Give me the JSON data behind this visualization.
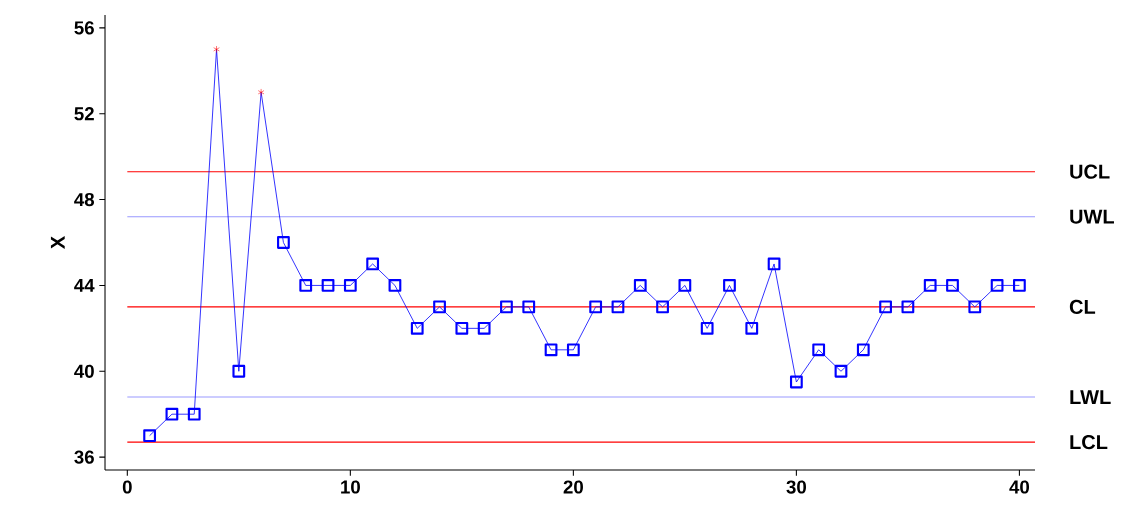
{
  "chart_data": {
    "type": "line",
    "ylabel": "X",
    "x": [
      1,
      2,
      3,
      4,
      5,
      6,
      7,
      8,
      9,
      10,
      11,
      12,
      13,
      14,
      15,
      16,
      17,
      18,
      19,
      20,
      21,
      22,
      23,
      24,
      25,
      26,
      27,
      28,
      29,
      30,
      31,
      32,
      33,
      34,
      35,
      36,
      37,
      38,
      39,
      40
    ],
    "series": [
      {
        "color": "#0000ff",
        "marker": "none",
        "values": [
          37,
          38,
          38,
          55,
          40,
          53,
          46,
          44,
          44,
          44,
          45,
          44,
          42,
          43,
          42,
          42,
          43,
          43,
          41,
          41,
          43,
          43,
          44,
          43,
          44,
          42,
          44,
          42,
          45,
          39.5,
          41,
          40,
          41,
          43,
          43,
          44,
          44,
          43,
          44,
          44
        ]
      },
      {
        "type": "scatter",
        "color": "#0000ff",
        "marker": "square",
        "values": [
          37,
          38,
          38,
          null,
          40,
          null,
          46,
          44,
          44,
          44,
          45,
          44,
          42,
          43,
          42,
          42,
          43,
          43,
          41,
          41,
          43,
          43,
          44,
          43,
          44,
          42,
          44,
          42,
          45,
          39.5,
          41,
          40,
          41,
          43,
          43,
          44,
          44,
          43,
          44,
          44
        ]
      },
      {
        "type": "scatter",
        "color": "#ff0000",
        "marker": "cross",
        "values": [
          null,
          null,
          null,
          55,
          null,
          53,
          null,
          null,
          null,
          null,
          null,
          null,
          null,
          null,
          null,
          null,
          null,
          null,
          null,
          null,
          null,
          null,
          null,
          null,
          null,
          null,
          null,
          null,
          null,
          null,
          null,
          null,
          null,
          null,
          null,
          null,
          null,
          null,
          null,
          null
        ]
      }
    ],
    "xlim": [
      -1,
      40.7
    ],
    "ylim": [
      35.4,
      56.6
    ],
    "xticks": [
      0,
      10,
      20,
      30,
      40
    ],
    "yticks": [
      36,
      40,
      44,
      48,
      52,
      56
    ],
    "ref_lines": [
      {
        "axis": "y",
        "value": 49.3,
        "label": "UCL",
        "color": "#ff0000"
      },
      {
        "axis": "y",
        "value": 47.2,
        "label": "UWL",
        "color": "#9999ff"
      },
      {
        "axis": "y",
        "value": 43,
        "label": "CL",
        "color": "#ff0000"
      },
      {
        "axis": "y",
        "value": 38.8,
        "label": "LWL",
        "color": "#9999ff"
      },
      {
        "axis": "y",
        "value": 36.7,
        "label": "LCL",
        "color": "#ff0000"
      }
    ]
  }
}
